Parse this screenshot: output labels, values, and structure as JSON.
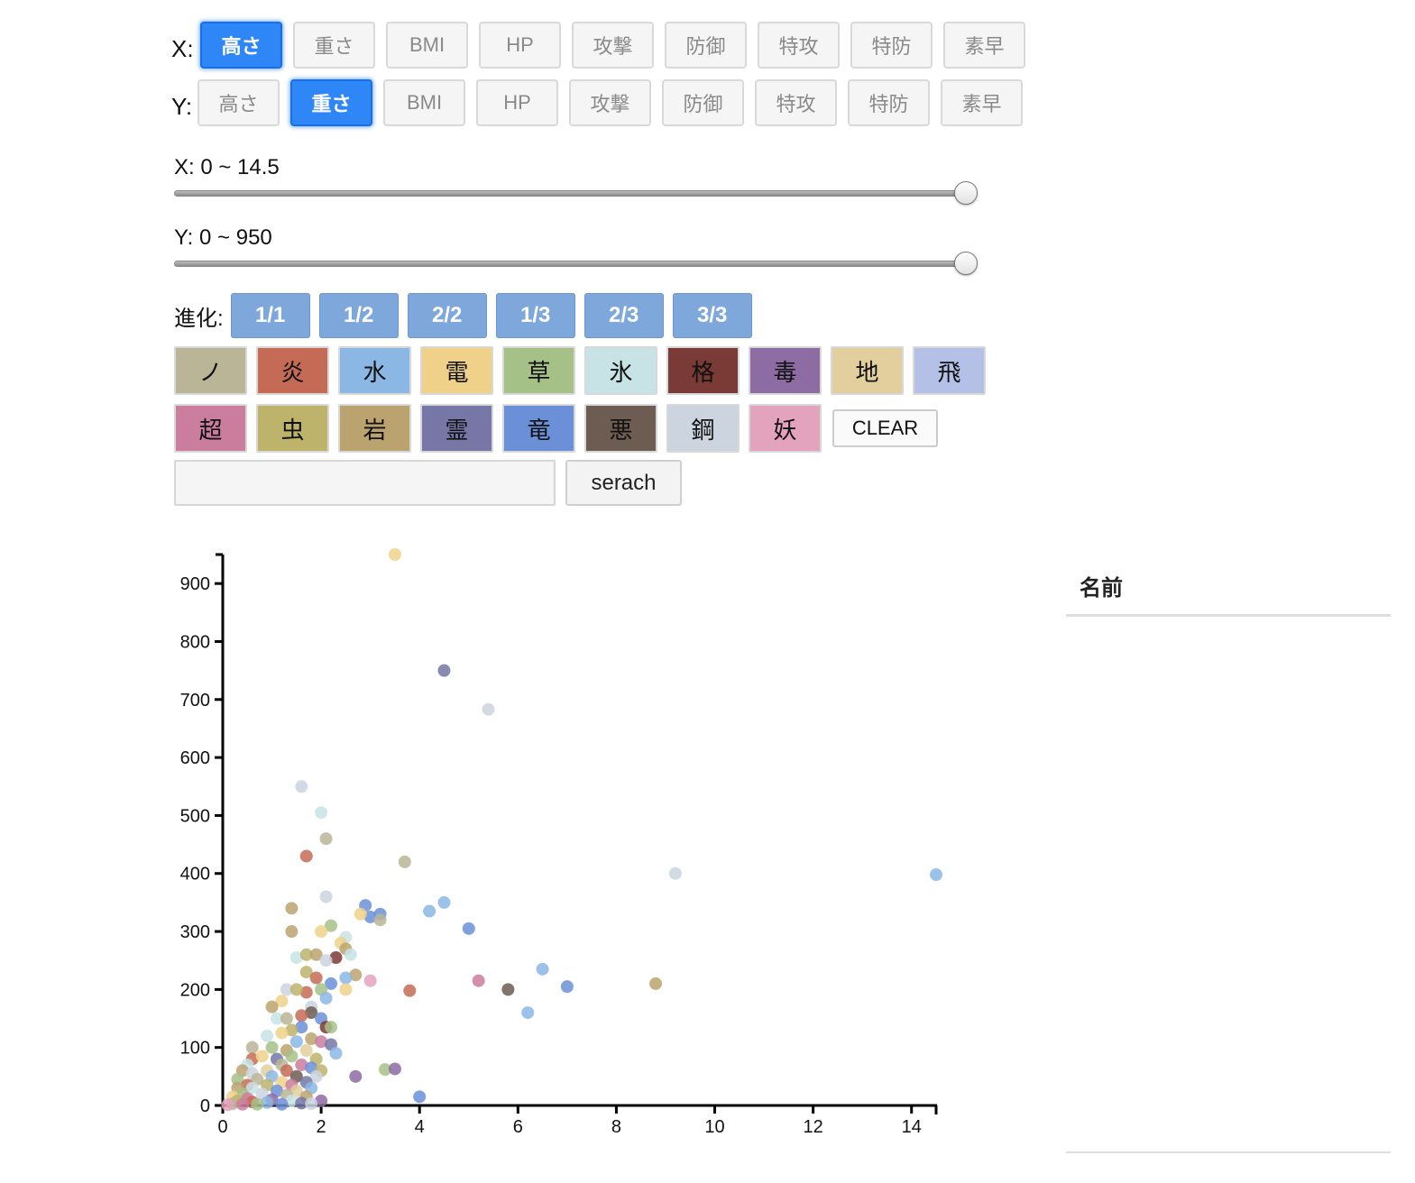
{
  "controls": {
    "x_axis": {
      "label": "X:",
      "options": [
        "高さ",
        "重さ",
        "BMI",
        "HP",
        "攻撃",
        "防御",
        "特攻",
        "特防",
        "素早"
      ],
      "selected": "高さ"
    },
    "y_axis": {
      "label": "Y:",
      "options": [
        "高さ",
        "重さ",
        "BMI",
        "HP",
        "攻撃",
        "防御",
        "特攻",
        "特防",
        "素早"
      ],
      "selected": "重さ"
    },
    "x_range": {
      "label": "X: 0 ~ 14.5",
      "min": 0,
      "max": 14.5,
      "value": 1.0
    },
    "y_range": {
      "label": "Y: 0 ~ 950",
      "min": 0,
      "max": 950,
      "value": 1.0
    },
    "evolution": {
      "label": "進化:",
      "options": [
        "1/1",
        "1/2",
        "2/2",
        "1/3",
        "2/3",
        "3/3"
      ]
    },
    "types_row1": [
      {
        "label": "ノ",
        "color": "#bab596"
      },
      {
        "label": "炎",
        "color": "#c56b55"
      },
      {
        "label": "水",
        "color": "#8bb7e5"
      },
      {
        "label": "電",
        "color": "#efd189"
      },
      {
        "label": "草",
        "color": "#a6c187"
      },
      {
        "label": "氷",
        "color": "#c8e3e6"
      },
      {
        "label": "格",
        "color": "#7a3a35"
      },
      {
        "label": "毒",
        "color": "#8d6ba3"
      },
      {
        "label": "地",
        "color": "#e2cf9d"
      },
      {
        "label": "飛",
        "color": "#b4c0e6"
      }
    ],
    "types_row2": [
      {
        "label": "超",
        "color": "#cb7d9d"
      },
      {
        "label": "虫",
        "color": "#bdb36b"
      },
      {
        "label": "岩",
        "color": "#bba36f"
      },
      {
        "label": "霊",
        "color": "#7677a6"
      },
      {
        "label": "竜",
        "color": "#6b90d8"
      },
      {
        "label": "悪",
        "color": "#6c5c52"
      },
      {
        "label": "鋼",
        "color": "#cbd4df"
      },
      {
        "label": "妖",
        "color": "#e4a3bd"
      }
    ],
    "clear_label": "CLEAR",
    "search": {
      "value": "",
      "placeholder": "",
      "button_label": "serach"
    }
  },
  "table": {
    "header": "名前"
  },
  "chart_data": {
    "type": "scatter",
    "xlim": [
      0,
      14.5
    ],
    "ylim": [
      0,
      950
    ],
    "x_ticks": [
      0,
      2,
      4,
      6,
      8,
      10,
      12,
      14
    ],
    "y_ticks": [
      0,
      100,
      200,
      300,
      400,
      500,
      600,
      700,
      800,
      900
    ],
    "grid": false,
    "points": [
      {
        "x": 3.5,
        "y": 950,
        "color": "#efd189"
      },
      {
        "x": 4.5,
        "y": 750,
        "color": "#7677a6"
      },
      {
        "x": 5.4,
        "y": 683,
        "color": "#cbd4df"
      },
      {
        "x": 1.6,
        "y": 550,
        "color": "#cbd4df"
      },
      {
        "x": 2.0,
        "y": 505,
        "color": "#c8e3e6"
      },
      {
        "x": 2.1,
        "y": 460,
        "color": "#bab596"
      },
      {
        "x": 1.7,
        "y": 430,
        "color": "#c56b55"
      },
      {
        "x": 3.7,
        "y": 420,
        "color": "#bab596"
      },
      {
        "x": 9.2,
        "y": 400,
        "color": "#cbd4df"
      },
      {
        "x": 14.5,
        "y": 398,
        "color": "#8bb7e5"
      },
      {
        "x": 2.1,
        "y": 360,
        "color": "#cbd4df"
      },
      {
        "x": 2.9,
        "y": 345,
        "color": "#6b90d8"
      },
      {
        "x": 4.5,
        "y": 350,
        "color": "#8bb7e5"
      },
      {
        "x": 4.2,
        "y": 335,
        "color": "#8bb7e5"
      },
      {
        "x": 1.4,
        "y": 340,
        "color": "#bba36f"
      },
      {
        "x": 3.0,
        "y": 325,
        "color": "#6b90d8"
      },
      {
        "x": 3.2,
        "y": 330,
        "color": "#6b90d8"
      },
      {
        "x": 3.2,
        "y": 320,
        "color": "#bab596"
      },
      {
        "x": 2.8,
        "y": 330,
        "color": "#efd189"
      },
      {
        "x": 2.2,
        "y": 310,
        "color": "#a6c187"
      },
      {
        "x": 5.0,
        "y": 305,
        "color": "#6b90d8"
      },
      {
        "x": 1.4,
        "y": 300,
        "color": "#bba36f"
      },
      {
        "x": 2.0,
        "y": 300,
        "color": "#efd189"
      },
      {
        "x": 2.5,
        "y": 290,
        "color": "#c8e3e6"
      },
      {
        "x": 2.4,
        "y": 280,
        "color": "#efd189"
      },
      {
        "x": 2.5,
        "y": 270,
        "color": "#bba36f"
      },
      {
        "x": 1.5,
        "y": 255,
        "color": "#c8e3e6"
      },
      {
        "x": 1.7,
        "y": 260,
        "color": "#bdb36b"
      },
      {
        "x": 1.9,
        "y": 260,
        "color": "#bba36f"
      },
      {
        "x": 2.3,
        "y": 255,
        "color": "#7a3a35"
      },
      {
        "x": 2.6,
        "y": 260,
        "color": "#c8e3e6"
      },
      {
        "x": 2.1,
        "y": 250,
        "color": "#cbd4df"
      },
      {
        "x": 6.5,
        "y": 235,
        "color": "#8bb7e5"
      },
      {
        "x": 1.7,
        "y": 230,
        "color": "#bdb36b"
      },
      {
        "x": 2.7,
        "y": 225,
        "color": "#bba36f"
      },
      {
        "x": 1.9,
        "y": 220,
        "color": "#c56b55"
      },
      {
        "x": 2.5,
        "y": 220,
        "color": "#8bb7e5"
      },
      {
        "x": 3.0,
        "y": 215,
        "color": "#e4a3bd"
      },
      {
        "x": 5.2,
        "y": 215,
        "color": "#cb7d9d"
      },
      {
        "x": 8.8,
        "y": 210,
        "color": "#bba36f"
      },
      {
        "x": 2.2,
        "y": 210,
        "color": "#6b90d8"
      },
      {
        "x": 7.0,
        "y": 205,
        "color": "#6b90d8"
      },
      {
        "x": 5.8,
        "y": 200,
        "color": "#6c5c52"
      },
      {
        "x": 3.8,
        "y": 198,
        "color": "#c56b55"
      },
      {
        "x": 2.0,
        "y": 200,
        "color": "#a6c187"
      },
      {
        "x": 2.5,
        "y": 200,
        "color": "#efd189"
      },
      {
        "x": 1.3,
        "y": 200,
        "color": "#cbd4df"
      },
      {
        "x": 1.7,
        "y": 195,
        "color": "#c56b55"
      },
      {
        "x": 1.5,
        "y": 200,
        "color": "#bdb36b"
      },
      {
        "x": 2.1,
        "y": 185,
        "color": "#8bb7e5"
      },
      {
        "x": 1.2,
        "y": 180,
        "color": "#efd189"
      },
      {
        "x": 1.0,
        "y": 170,
        "color": "#bba36f"
      },
      {
        "x": 1.8,
        "y": 170,
        "color": "#cbd4df"
      },
      {
        "x": 6.2,
        "y": 160,
        "color": "#8bb7e5"
      },
      {
        "x": 1.8,
        "y": 160,
        "color": "#6c5c52"
      },
      {
        "x": 1.6,
        "y": 155,
        "color": "#c56b55"
      },
      {
        "x": 2.0,
        "y": 150,
        "color": "#6b90d8"
      },
      {
        "x": 1.1,
        "y": 150,
        "color": "#c8e3e6"
      },
      {
        "x": 1.3,
        "y": 150,
        "color": "#bab596"
      },
      {
        "x": 2.1,
        "y": 135,
        "color": "#7a3a35"
      },
      {
        "x": 2.2,
        "y": 135,
        "color": "#a6c187"
      },
      {
        "x": 1.6,
        "y": 135,
        "color": "#6b90d8"
      },
      {
        "x": 1.4,
        "y": 130,
        "color": "#bdb36b"
      },
      {
        "x": 1.2,
        "y": 125,
        "color": "#efd189"
      },
      {
        "x": 0.9,
        "y": 120,
        "color": "#c8e3e6"
      },
      {
        "x": 1.8,
        "y": 115,
        "color": "#bba36f"
      },
      {
        "x": 1.5,
        "y": 110,
        "color": "#8bb7e5"
      },
      {
        "x": 2.0,
        "y": 110,
        "color": "#cb7d9d"
      },
      {
        "x": 2.2,
        "y": 105,
        "color": "#7677a6"
      },
      {
        "x": 0.6,
        "y": 100,
        "color": "#bab596"
      },
      {
        "x": 1.0,
        "y": 100,
        "color": "#a6c187"
      },
      {
        "x": 1.3,
        "y": 95,
        "color": "#bba36f"
      },
      {
        "x": 1.7,
        "y": 95,
        "color": "#e2cf9d"
      },
      {
        "x": 2.3,
        "y": 90,
        "color": "#8bb7e5"
      },
      {
        "x": 0.6,
        "y": 80,
        "color": "#c56b55"
      },
      {
        "x": 0.8,
        "y": 85,
        "color": "#efd189"
      },
      {
        "x": 1.1,
        "y": 80,
        "color": "#7677a6"
      },
      {
        "x": 1.4,
        "y": 85,
        "color": "#a6c187"
      },
      {
        "x": 1.9,
        "y": 80,
        "color": "#bdb36b"
      },
      {
        "x": 0.5,
        "y": 70,
        "color": "#c8e3e6"
      },
      {
        "x": 1.2,
        "y": 70,
        "color": "#bab596"
      },
      {
        "x": 1.6,
        "y": 70,
        "color": "#cb7d9d"
      },
      {
        "x": 1.8,
        "y": 65,
        "color": "#6b90d8"
      },
      {
        "x": 3.3,
        "y": 62,
        "color": "#a6c187"
      },
      {
        "x": 3.5,
        "y": 63,
        "color": "#8d6ba3"
      },
      {
        "x": 0.4,
        "y": 60,
        "color": "#bba36f"
      },
      {
        "x": 0.9,
        "y": 60,
        "color": "#e2cf9d"
      },
      {
        "x": 1.3,
        "y": 60,
        "color": "#c56b55"
      },
      {
        "x": 2.0,
        "y": 60,
        "color": "#bdb36b"
      },
      {
        "x": 0.6,
        "y": 55,
        "color": "#cbd4df"
      },
      {
        "x": 1.0,
        "y": 50,
        "color": "#8bb7e5"
      },
      {
        "x": 1.5,
        "y": 50,
        "color": "#6c5c52"
      },
      {
        "x": 2.7,
        "y": 50,
        "color": "#8d6ba3"
      },
      {
        "x": 1.9,
        "y": 50,
        "color": "#cbd4df"
      },
      {
        "x": 0.3,
        "y": 45,
        "color": "#a6c187"
      },
      {
        "x": 0.7,
        "y": 45,
        "color": "#bab596"
      },
      {
        "x": 1.2,
        "y": 40,
        "color": "#efd189"
      },
      {
        "x": 1.7,
        "y": 40,
        "color": "#7677a6"
      },
      {
        "x": 0.5,
        "y": 35,
        "color": "#c56b55"
      },
      {
        "x": 0.9,
        "y": 35,
        "color": "#bdb36b"
      },
      {
        "x": 1.4,
        "y": 35,
        "color": "#cb7d9d"
      },
      {
        "x": 1.8,
        "y": 30,
        "color": "#8bb7e5"
      },
      {
        "x": 0.3,
        "y": 30,
        "color": "#bba36f"
      },
      {
        "x": 0.6,
        "y": 30,
        "color": "#c8e3e6"
      },
      {
        "x": 1.1,
        "y": 25,
        "color": "#6b90d8"
      },
      {
        "x": 1.5,
        "y": 25,
        "color": "#e2cf9d"
      },
      {
        "x": 0.4,
        "y": 20,
        "color": "#a6c187"
      },
      {
        "x": 0.8,
        "y": 20,
        "color": "#cbd4df"
      },
      {
        "x": 1.3,
        "y": 18,
        "color": "#bab596"
      },
      {
        "x": 1.7,
        "y": 15,
        "color": "#bba36f"
      },
      {
        "x": 4.0,
        "y": 15,
        "color": "#6b90d8"
      },
      {
        "x": 0.2,
        "y": 15,
        "color": "#efd189"
      },
      {
        "x": 0.5,
        "y": 12,
        "color": "#cb7d9d"
      },
      {
        "x": 1.0,
        "y": 10,
        "color": "#8d6ba3"
      },
      {
        "x": 2.0,
        "y": 8,
        "color": "#8d6ba3"
      },
      {
        "x": 1.4,
        "y": 8,
        "color": "#c8e3e6"
      },
      {
        "x": 0.3,
        "y": 8,
        "color": "#bdb36b"
      },
      {
        "x": 0.6,
        "y": 6,
        "color": "#c56b55"
      },
      {
        "x": 0.9,
        "y": 5,
        "color": "#8bb7e5"
      },
      {
        "x": 1.6,
        "y": 4,
        "color": "#7677a6"
      },
      {
        "x": 1.8,
        "y": 3,
        "color": "#cbd4df"
      },
      {
        "x": 0.2,
        "y": 3,
        "color": "#bab596"
      },
      {
        "x": 0.4,
        "y": 2,
        "color": "#cb7d9d"
      },
      {
        "x": 0.7,
        "y": 2,
        "color": "#a6c187"
      },
      {
        "x": 1.2,
        "y": 2,
        "color": "#6b90d8"
      },
      {
        "x": 0.1,
        "y": 1,
        "color": "#e4a3bd"
      }
    ]
  }
}
